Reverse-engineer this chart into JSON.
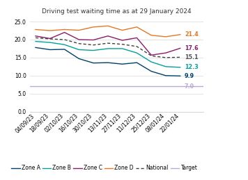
{
  "title": "Driving test waiting time as at 29 January 2024",
  "x_labels": [
    "04/09/23",
    "18/09/23",
    "02/10/23",
    "16/10/23",
    "30/10/23",
    "13/11/23",
    "27/11/23",
    "11/12/23",
    "25/12/23",
    "08/01/24",
    "22/01/24"
  ],
  "zone_a": [
    17.8,
    17.2,
    17.3,
    14.7,
    13.5,
    13.6,
    13.2,
    13.6,
    11.2,
    10.0,
    9.9
  ],
  "zone_b": [
    19.5,
    19.2,
    18.6,
    17.2,
    17.0,
    17.5,
    17.5,
    16.3,
    13.8,
    12.5,
    12.3
  ],
  "zone_c": [
    21.0,
    20.3,
    22.0,
    20.0,
    19.9,
    21.0,
    19.8,
    20.5,
    15.7,
    16.3,
    17.6
  ],
  "zone_d": [
    22.8,
    22.5,
    22.8,
    22.6,
    23.5,
    23.8,
    22.6,
    23.5,
    21.2,
    20.8,
    21.4
  ],
  "national": [
    20.5,
    20.2,
    20.0,
    18.9,
    18.5,
    19.0,
    18.7,
    18.1,
    15.5,
    15.0,
    15.1
  ],
  "target": 7.0,
  "zone_a_color": "#003f6b",
  "zone_b_color": "#00a19a",
  "zone_c_color": "#8b1a6b",
  "zone_d_color": "#e87722",
  "national_color": "#404040",
  "target_color": "#b8a9d9",
  "end_labels": [
    {
      "text": "21.4",
      "color": "#e87722"
    },
    {
      "text": "17.6",
      "color": "#8b1a6b"
    },
    {
      "text": "15.1",
      "color": "#555555"
    },
    {
      "text": "12.3",
      "color": "#00a19a"
    },
    {
      "text": "9.9",
      "color": "#003f6b"
    },
    {
      "text": "7.0",
      "color": "#b8a9d9"
    }
  ],
  "ylim": [
    0.0,
    26.0
  ],
  "yticks": [
    0.0,
    5.0,
    10.0,
    15.0,
    20.0,
    25.0
  ],
  "background_color": "#ffffff",
  "title_fontsize": 6.5,
  "axis_fontsize": 5.5,
  "label_fontsize": 5.8,
  "legend_fontsize": 5.5
}
